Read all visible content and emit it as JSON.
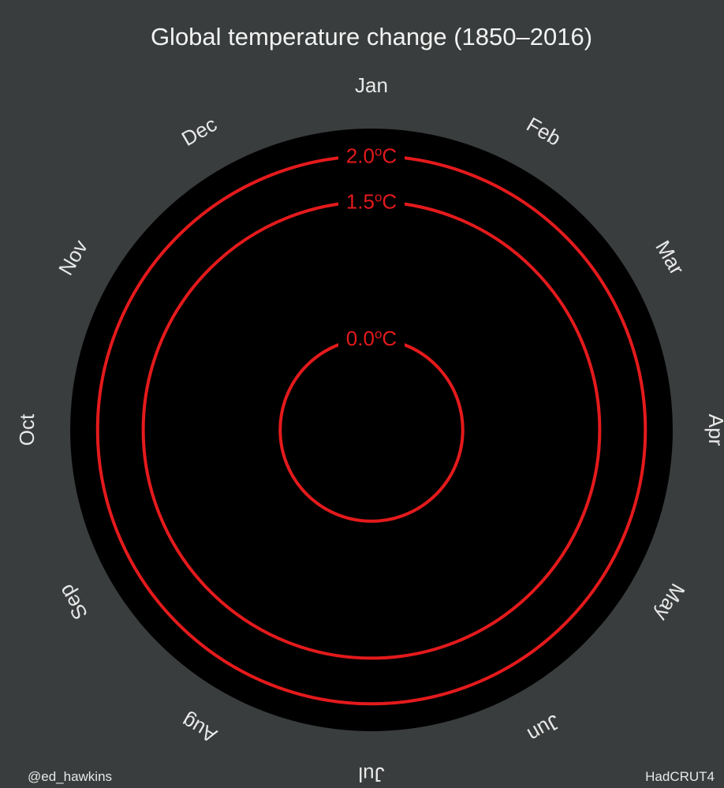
{
  "colors": {
    "background": "#3a3d3d",
    "disc": "#000000",
    "ring": "#e41a1c",
    "text": "#e8e8e8"
  },
  "chart_data": {
    "type": "polar-line",
    "title": "Global temperature change (1850–2016)",
    "months": [
      "Jan",
      "Feb",
      "Mar",
      "Apr",
      "May",
      "Jun",
      "Jul",
      "Aug",
      "Sep",
      "Oct",
      "Nov",
      "Dec"
    ],
    "reference_rings": [
      {
        "value": 0.0,
        "label": "0.0",
        "unit": "o",
        "suffix": "C"
      },
      {
        "value": 1.5,
        "label": "1.5",
        "unit": "o",
        "suffix": "C"
      },
      {
        "value": 2.0,
        "label": "2.0",
        "unit": "o",
        "suffix": "C"
      }
    ],
    "radial_range": [
      -1.0,
      2.3
    ],
    "series": []
  },
  "footer": {
    "author": "@ed_hawkins",
    "source": "HadCRUT4"
  }
}
